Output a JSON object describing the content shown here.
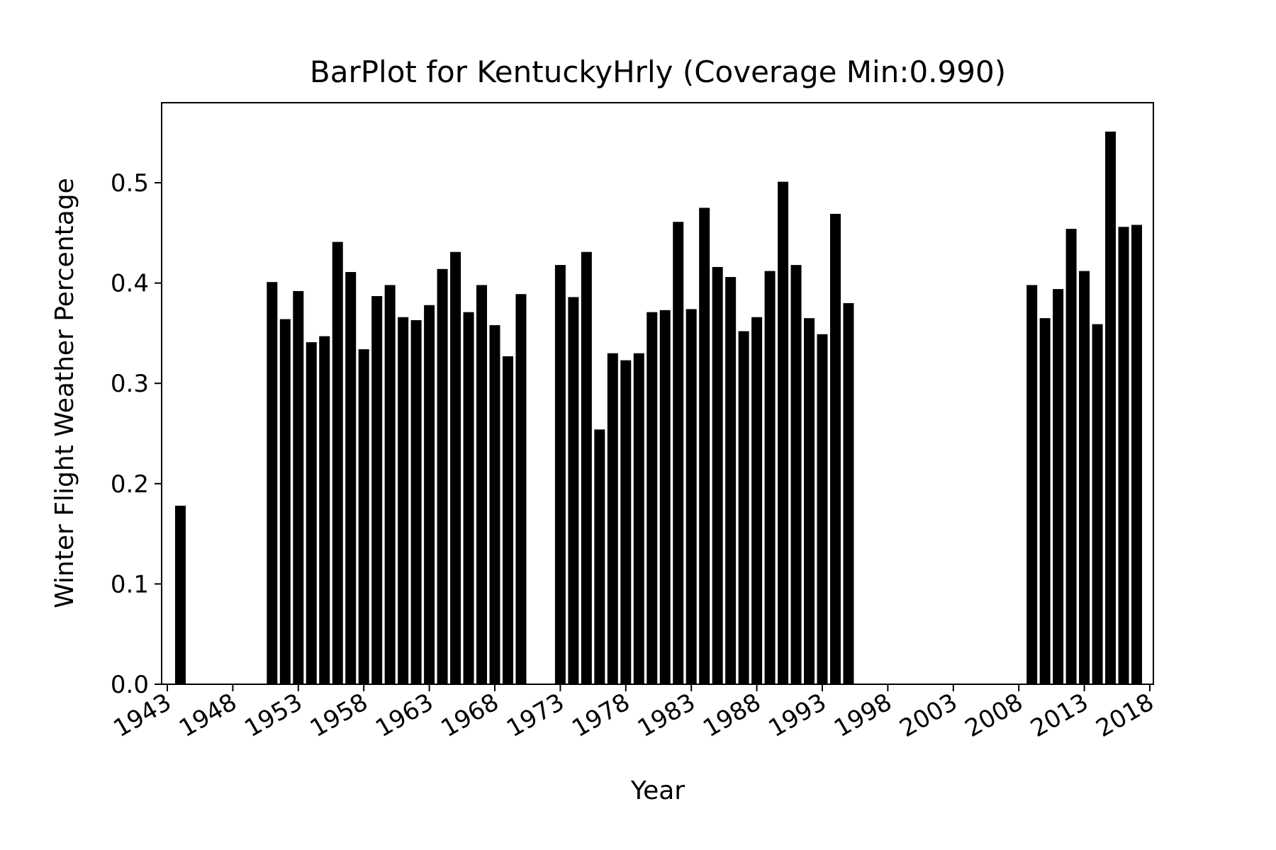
{
  "chart_data": {
    "type": "bar",
    "title": "BarPlot for KentuckyHrly (Coverage Min:0.990)",
    "xlabel": "Year",
    "ylabel": "Winter Flight Weather Percentage",
    "xlim": [
      1943,
      2018
    ],
    "ylim": [
      0,
      0.58
    ],
    "xticks": [
      1943,
      1948,
      1953,
      1958,
      1963,
      1968,
      1973,
      1978,
      1983,
      1988,
      1993,
      1998,
      2003,
      2008,
      2013,
      2018
    ],
    "yticks": [
      0.0,
      0.1,
      0.2,
      0.3,
      0.4,
      0.5
    ],
    "ytick_labels": [
      "0.0",
      "0.1",
      "0.2",
      "0.3",
      "0.4",
      "0.5"
    ],
    "grid": false,
    "bar_color": "#000000",
    "x": [
      1944,
      1951,
      1952,
      1953,
      1954,
      1955,
      1956,
      1957,
      1958,
      1959,
      1960,
      1961,
      1962,
      1963,
      1964,
      1965,
      1966,
      1967,
      1968,
      1969,
      1970,
      1973,
      1974,
      1975,
      1976,
      1977,
      1978,
      1979,
      1980,
      1981,
      1982,
      1983,
      1984,
      1985,
      1986,
      1987,
      1988,
      1989,
      1990,
      1991,
      1992,
      1993,
      1994,
      1995,
      2009,
      2010,
      2011,
      2012,
      2013,
      2014,
      2015,
      2016,
      2017
    ],
    "values": [
      0.178,
      0.401,
      0.364,
      0.392,
      0.341,
      0.347,
      0.441,
      0.411,
      0.334,
      0.387,
      0.398,
      0.366,
      0.363,
      0.378,
      0.414,
      0.431,
      0.371,
      0.398,
      0.358,
      0.327,
      0.389,
      0.418,
      0.386,
      0.431,
      0.254,
      0.33,
      0.323,
      0.33,
      0.371,
      0.373,
      0.461,
      0.374,
      0.475,
      0.416,
      0.406,
      0.352,
      0.366,
      0.412,
      0.501,
      0.418,
      0.365,
      0.349,
      0.469,
      0.38,
      0.398,
      0.365,
      0.394,
      0.454,
      0.412,
      0.359,
      0.551,
      0.456,
      0.458
    ]
  }
}
